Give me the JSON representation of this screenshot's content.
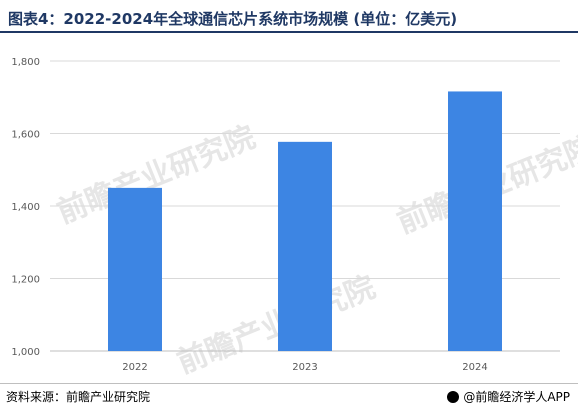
{
  "header": {
    "title": "图表4：2022-2024年全球通信芯片系统市场规模 (单位：亿美元)"
  },
  "chart_data": {
    "type": "bar",
    "categories": [
      "2022",
      "2023",
      "2024"
    ],
    "values": [
      1450,
      1577,
      1716
    ],
    "ylim": [
      1000,
      1800
    ],
    "yticks": [
      1000,
      1200,
      1400,
      1600,
      1800
    ],
    "ytick_labels": [
      "1,000",
      "1,200",
      "1,400",
      "1,600",
      "1,800"
    ],
    "grid": true,
    "bar_color": "#3d85e3"
  },
  "watermarks": [
    "前瞻产业研究院",
    "前瞻产业研究院",
    "前瞻产业研究院"
  ],
  "footer": {
    "source": "资料来源：前瞻产业研究院",
    "brand": "@前瞻经济学人APP"
  }
}
